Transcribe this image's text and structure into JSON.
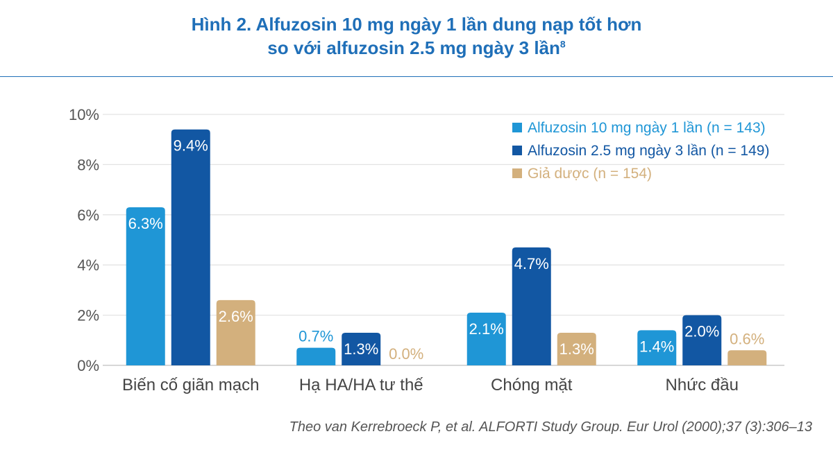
{
  "header": {
    "title_line1": "Hình 2. Alfuzosin 10 mg ngày 1 lần dung nạp tốt hơn",
    "title_line2": "so với alfuzosin 2.5 mg ngày 3 lần",
    "title_sup": "8"
  },
  "source": "Theo van Kerrebroeck P, et al. ALFORTI Study Group. Eur Urol (2000);37 (3):306–13",
  "chart_data": {
    "type": "bar",
    "categories": [
      "Biến cố giãn mạch",
      "Hạ HA/HA tư thế",
      "Chóng mặt",
      "Nhức đầu"
    ],
    "series": [
      {
        "name": "Alfuzosin 10 mg ngày 1 lần (n = 143)",
        "values": [
          6.3,
          0.7,
          2.1,
          1.4
        ],
        "labels": [
          "6.3%",
          "0.7%",
          "2.1%",
          "1.4%"
        ],
        "color": "#1f96d6"
      },
      {
        "name": "Alfuzosin 2.5 mg ngày 3 lần (n = 149)",
        "values": [
          9.4,
          1.3,
          4.7,
          2.0
        ],
        "labels": [
          "9.4%",
          "1.3%",
          "4.7%",
          "2.0%"
        ],
        "color": "#1257a3"
      },
      {
        "name": "Giả dược (n = 154)",
        "values": [
          2.6,
          0.0,
          1.3,
          0.6
        ],
        "labels": [
          "2.6%",
          "0.0%",
          "1.3%",
          "0.6%"
        ],
        "color": "#d3b07d"
      }
    ],
    "yticks": [
      "0%",
      "2%",
      "4%",
      "6%",
      "8%",
      "10%"
    ],
    "ylim": [
      0,
      10
    ],
    "grid": true,
    "legend_position": "top-right"
  }
}
